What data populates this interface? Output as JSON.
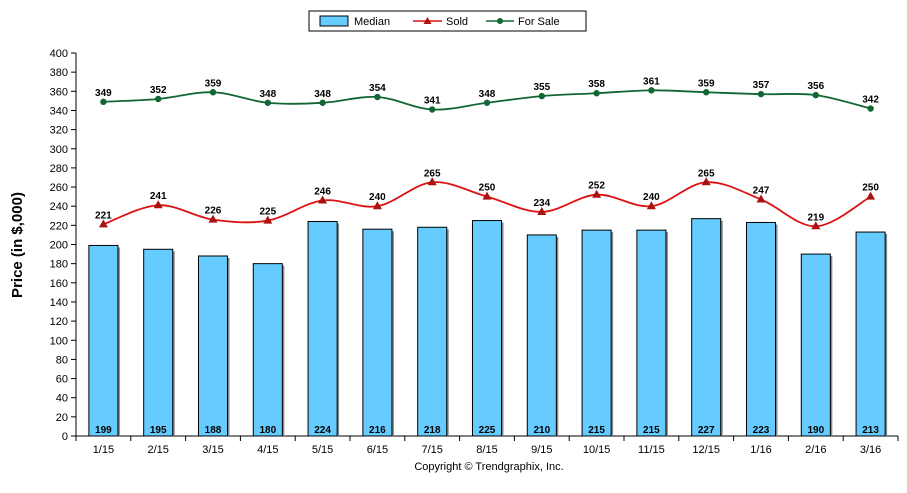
{
  "chart_data": {
    "type": "bar",
    "ylabel": "Price (in $,000)",
    "ylim": [
      0,
      400
    ],
    "ytick_step": 20,
    "grid": false,
    "legend_placement": "top-center",
    "categories": [
      "1/15",
      "2/15",
      "3/15",
      "4/15",
      "5/15",
      "6/15",
      "7/15",
      "8/15",
      "9/15",
      "10/15",
      "11/15",
      "12/15",
      "1/16",
      "2/16",
      "3/16"
    ],
    "series": [
      {
        "name": "Median",
        "kind": "bar",
        "color": "#66ccff",
        "values": [
          199,
          195,
          188,
          180,
          224,
          216,
          218,
          225,
          210,
          215,
          215,
          227,
          223,
          190,
          213
        ]
      },
      {
        "name": "Sold",
        "kind": "line",
        "color": "#dd1111",
        "marker": "triangle",
        "values": [
          221,
          241,
          226,
          225,
          246,
          240,
          265,
          250,
          234,
          252,
          240,
          265,
          247,
          219,
          250
        ]
      },
      {
        "name": "For Sale",
        "kind": "line",
        "color": "#116633",
        "marker": "circle",
        "values": [
          349,
          352,
          359,
          348,
          348,
          354,
          341,
          348,
          355,
          358,
          361,
          359,
          357,
          356,
          342
        ]
      }
    ],
    "copyright": "Copyright © Trendgraphix, Inc."
  }
}
